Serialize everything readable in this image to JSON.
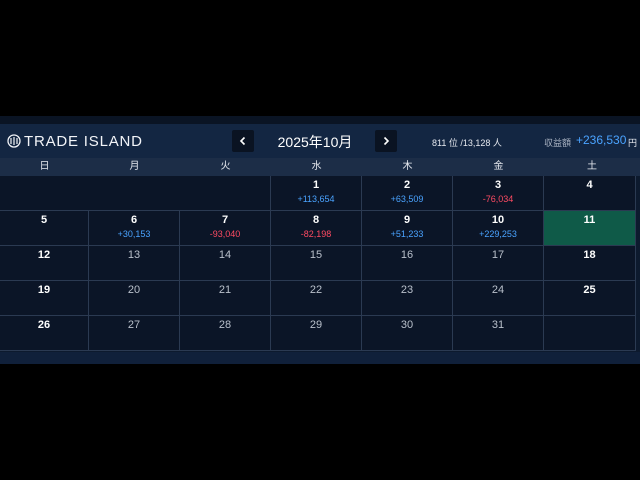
{
  "brand": {
    "logo_text": "TRADE ISLAND"
  },
  "header": {
    "month_title": "2025年10月",
    "prev_icon": "chevron-left-icon",
    "next_icon": "chevron-right-icon",
    "rank_text": "811 位 /13,128 人",
    "earnings_label": "収益額",
    "earnings_value": "+236,530",
    "earnings_unit": "円"
  },
  "colors": {
    "positive": "#4aa3ff",
    "negative": "#ff4b63",
    "today": "#0f5a48"
  },
  "weekdays": [
    "日",
    "月",
    "火",
    "水",
    "木",
    "金",
    "土"
  ],
  "weeks": [
    [
      {
        "day": "",
        "pnl": ""
      },
      {
        "day": "",
        "pnl": ""
      },
      {
        "day": "",
        "pnl": ""
      },
      {
        "day": "1",
        "pnl": "+113,654"
      },
      {
        "day": "2",
        "pnl": "+63,509"
      },
      {
        "day": "3",
        "pnl": "-76,034"
      },
      {
        "day": "4",
        "pnl": ""
      }
    ],
    [
      {
        "day": "5",
        "pnl": ""
      },
      {
        "day": "6",
        "pnl": "+30,153"
      },
      {
        "day": "7",
        "pnl": "-93,040"
      },
      {
        "day": "8",
        "pnl": "-82,198"
      },
      {
        "day": "9",
        "pnl": "+51,233"
      },
      {
        "day": "10",
        "pnl": "+229,253"
      },
      {
        "day": "11",
        "pnl": ""
      }
    ],
    [
      {
        "day": "12",
        "pnl": ""
      },
      {
        "day": "13",
        "pnl": ""
      },
      {
        "day": "14",
        "pnl": ""
      },
      {
        "day": "15",
        "pnl": ""
      },
      {
        "day": "16",
        "pnl": ""
      },
      {
        "day": "17",
        "pnl": ""
      },
      {
        "day": "18",
        "pnl": ""
      }
    ],
    [
      {
        "day": "19",
        "pnl": ""
      },
      {
        "day": "20",
        "pnl": ""
      },
      {
        "day": "21",
        "pnl": ""
      },
      {
        "day": "22",
        "pnl": ""
      },
      {
        "day": "23",
        "pnl": ""
      },
      {
        "day": "24",
        "pnl": ""
      },
      {
        "day": "25",
        "pnl": ""
      }
    ],
    [
      {
        "day": "26",
        "pnl": ""
      },
      {
        "day": "27",
        "pnl": ""
      },
      {
        "day": "28",
        "pnl": ""
      },
      {
        "day": "29",
        "pnl": ""
      },
      {
        "day": "30",
        "pnl": ""
      },
      {
        "day": "31",
        "pnl": ""
      },
      {
        "day": "",
        "pnl": ""
      }
    ]
  ],
  "today": "11"
}
